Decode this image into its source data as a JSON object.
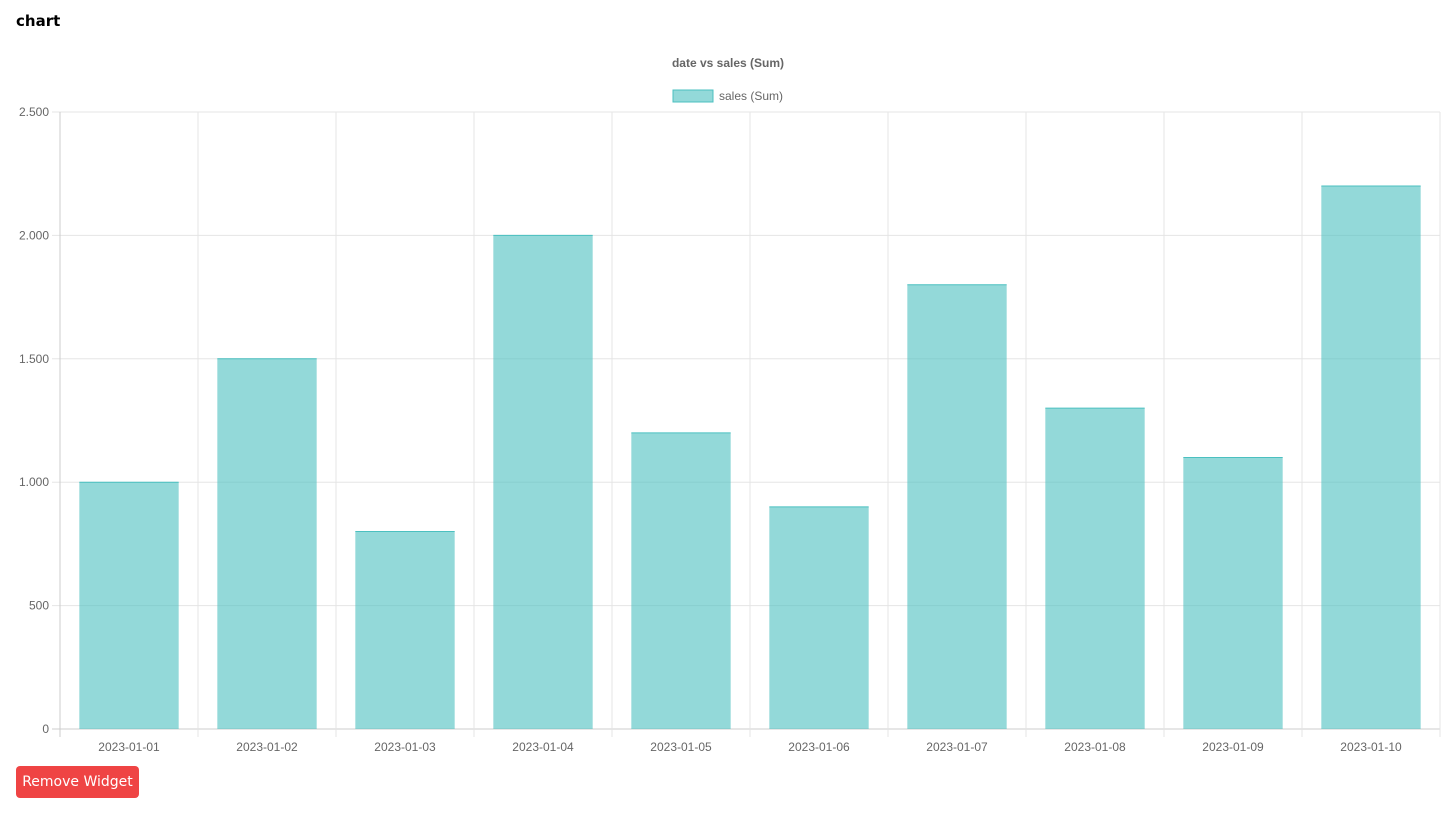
{
  "widget": {
    "title": "chart",
    "remove_label": "Remove Widget",
    "remove_color": "#ef4444"
  },
  "chart_data": {
    "type": "bar",
    "title": "date vs sales (Sum)",
    "xlabel": "",
    "ylabel": "",
    "categories": [
      "2023-01-01",
      "2023-01-02",
      "2023-01-03",
      "2023-01-04",
      "2023-01-05",
      "2023-01-06",
      "2023-01-07",
      "2023-01-08",
      "2023-01-09",
      "2023-01-10"
    ],
    "series": [
      {
        "name": "sales (Sum)",
        "values": [
          1000,
          1500,
          800,
          2000,
          1200,
          900,
          1800,
          1300,
          1100,
          2200
        ],
        "fill": "#4bc0c0",
        "fill_opacity": 0.6,
        "stroke": "#4bc0c0"
      }
    ],
    "ylim": [
      0,
      2500
    ],
    "yticks": [
      0,
      500,
      1000,
      1500,
      2000,
      2500
    ],
    "ytick_labels": [
      "0",
      "500",
      "1.000",
      "1.500",
      "2.000",
      "2.500"
    ],
    "grid": true,
    "legend": "top-center"
  }
}
